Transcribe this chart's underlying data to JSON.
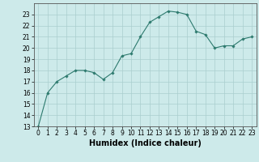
{
  "x": [
    0,
    1,
    2,
    3,
    4,
    5,
    6,
    7,
    8,
    9,
    10,
    11,
    12,
    13,
    14,
    15,
    16,
    17,
    18,
    19,
    20,
    21,
    22,
    23
  ],
  "y": [
    13,
    16,
    17,
    17.5,
    18,
    18,
    17.8,
    17.2,
    17.8,
    19.3,
    19.5,
    21,
    22.3,
    22.8,
    23.3,
    23.2,
    23,
    21.5,
    21.2,
    20,
    20.2,
    20.2,
    20.8,
    21
  ],
  "line_color": "#2d7a6e",
  "marker": "D",
  "marker_size": 1.8,
  "background_color": "#cdeaea",
  "grid_color": "#aacece",
  "xlabel": "Humidex (Indice chaleur)",
  "ylim": [
    13,
    24
  ],
  "xlim": [
    -0.5,
    23.5
  ],
  "yticks": [
    13,
    14,
    15,
    16,
    17,
    18,
    19,
    20,
    21,
    22,
    23
  ],
  "xticks": [
    0,
    1,
    2,
    3,
    4,
    5,
    6,
    7,
    8,
    9,
    10,
    11,
    12,
    13,
    14,
    15,
    16,
    17,
    18,
    19,
    20,
    21,
    22,
    23
  ],
  "tick_fontsize": 5.5,
  "xlabel_fontsize": 7.0,
  "xlabel_fontweight": "bold"
}
